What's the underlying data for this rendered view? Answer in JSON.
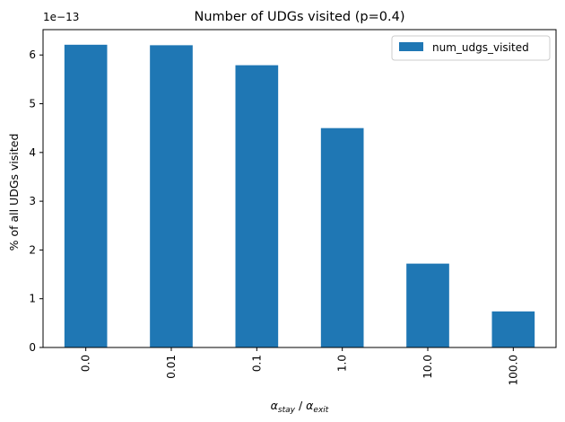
{
  "chart_data": {
    "type": "bar",
    "title": "Number of UDGs visited (p=0.4)",
    "xlabel": "α_stay / α_exit",
    "xlabel_parts": {
      "alpha1": "α",
      "sub1": "stay",
      "sep": " / ",
      "alpha2": "α",
      "sub2": "exit"
    },
    "ylabel": "% of all UDGs visited",
    "scale_label": "1e−13",
    "categories": [
      "0.0",
      "0.01",
      "0.1",
      "1.0",
      "10.0",
      "100.0"
    ],
    "series": [
      {
        "name": "num_udgs_visited",
        "color": "#1f77b4",
        "values": [
          6.21,
          6.2,
          5.79,
          4.5,
          1.72,
          0.74
        ]
      }
    ],
    "value_multiplier": 1e-13,
    "yticks": [
      "0",
      "1",
      "2",
      "3",
      "4",
      "5",
      "6"
    ],
    "ylim": [
      0,
      6.52
    ],
    "legend_position": "top-right",
    "grid": false
  }
}
